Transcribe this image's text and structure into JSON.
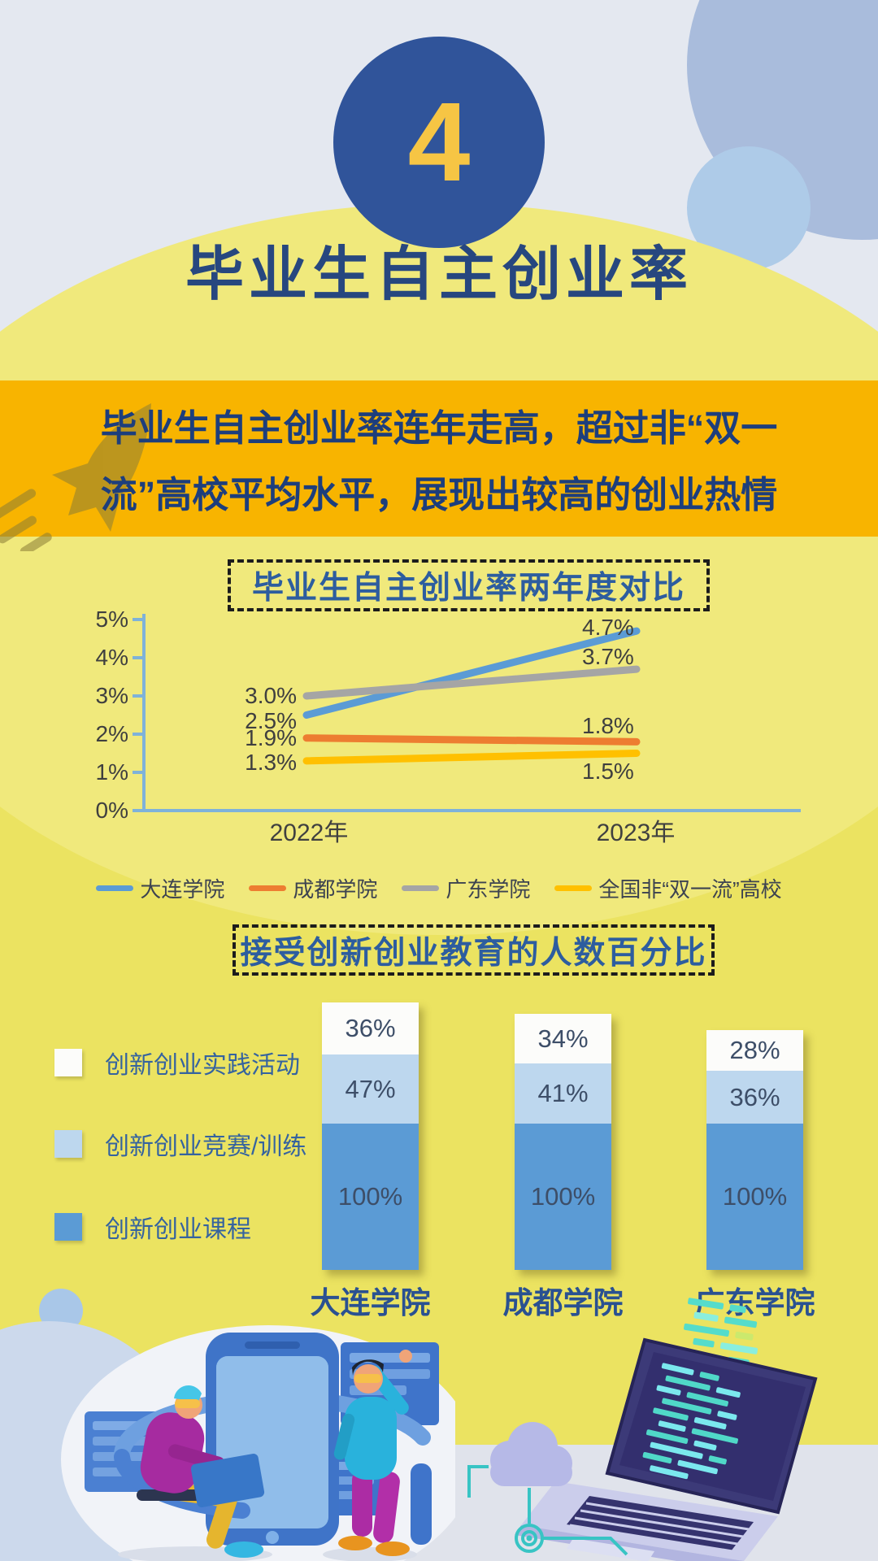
{
  "page": {
    "badge_number": "4",
    "title": "毕业生自主创业率",
    "banner_line1": "毕业生自主创业率连年走高，超过非“双一",
    "banner_line2": "流”高校平均水平，展现出较高的创业热情"
  },
  "colors": {
    "top_grey": "#e4e8f0",
    "dome_yellow": "#f0e97c",
    "body_yellow": "#ebe361",
    "banner_orange": "#f8b400",
    "badge_blue": "#30549a",
    "badge_number_yellow": "#f6c544",
    "title_navy": "#27477f",
    "axis_blue": "#7fb2d9",
    "bottom_grey": "#e0e3eb"
  },
  "chart_data": [
    {
      "type": "line",
      "title": "毕业生自主创业率两年度对比",
      "x": [
        "2022年",
        "2023年"
      ],
      "y_ticks": [
        "5%",
        "4%",
        "3%",
        "2%",
        "1%",
        "0%"
      ],
      "ylim": [
        0,
        5
      ],
      "grid": false,
      "legend_position": "bottom",
      "series": [
        {
          "name": "大连学院",
          "color": "#5b9bd5",
          "values": [
            2.5,
            4.7
          ],
          "labels": [
            "2.5%",
            "4.7%"
          ]
        },
        {
          "name": "成都学院",
          "color": "#ed7d31",
          "values": [
            1.9,
            1.8
          ],
          "labels": [
            "1.9%",
            "1.8%"
          ]
        },
        {
          "name": "广东学院",
          "color": "#a5a5a5",
          "values": [
            3.0,
            3.7
          ],
          "labels": [
            "3.0%",
            "3.7%"
          ]
        },
        {
          "name": "全国非“双一流”高校",
          "color": "#ffc000",
          "values": [
            1.3,
            1.5
          ],
          "labels": [
            "1.3%",
            "1.5%"
          ]
        }
      ]
    },
    {
      "type": "bar",
      "subtype": "stacked",
      "title": "接受创新创业教育的人数百分比",
      "categories": [
        "大连学院",
        "成都学院",
        "广东学院"
      ],
      "series": [
        {
          "name": "创新创业实践活动",
          "color": "#fcfcfa",
          "values": [
            36,
            34,
            28
          ]
        },
        {
          "name": "创新创业竞赛/训练",
          "color": "#bdd7ee",
          "values": [
            47,
            41,
            36
          ]
        },
        {
          "name": "创新创业课程",
          "color": "#5b9bd5",
          "values": [
            100,
            100,
            100
          ]
        }
      ],
      "value_suffix": "%",
      "legend_position": "left"
    }
  ]
}
